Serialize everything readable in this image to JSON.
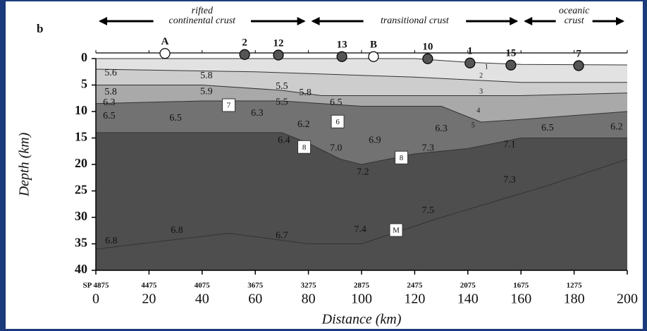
{
  "chart_data": {
    "type": "section",
    "panel_label": "b",
    "xlabel": "Distance (km)",
    "ylabel": "Depth (km)",
    "xlim": [
      0,
      200
    ],
    "ylim": [
      0,
      40
    ],
    "y_inverted": true,
    "xticks": [
      0,
      20,
      40,
      60,
      80,
      100,
      120,
      140,
      160,
      180,
      200
    ],
    "yticks": [
      0,
      5,
      10,
      15,
      20,
      25,
      30,
      35,
      40
    ],
    "x2ticks": [
      {
        "value": 0,
        "label": "SP 4875"
      },
      {
        "value": 20,
        "label": "4475"
      },
      {
        "value": 40,
        "label": "4075"
      },
      {
        "value": 60,
        "label": "3675"
      },
      {
        "value": 80,
        "label": "3275"
      },
      {
        "value": 100,
        "label": "2875"
      },
      {
        "value": 120,
        "label": "2475"
      },
      {
        "value": 140,
        "label": "2075"
      },
      {
        "value": 160,
        "label": "1675"
      },
      {
        "value": 180,
        "label": "1275"
      }
    ],
    "zones": [
      {
        "lines": [
          "rifted",
          "continental crust"
        ],
        "x": [
          0,
          80
        ]
      },
      {
        "lines": [
          "transitional crust"
        ],
        "x": [
          80,
          160
        ]
      },
      {
        "lines": [
          "oceanic",
          "crust"
        ],
        "x": [
          160,
          200
        ]
      }
    ],
    "stations": [
      {
        "name": "A",
        "x": 26,
        "y": -1.1,
        "open": true
      },
      {
        "name": "2",
        "x": 56,
        "y": -0.9,
        "open": false
      },
      {
        "name": "12",
        "x": 68.7,
        "y": -0.8,
        "open": false
      },
      {
        "name": "13",
        "x": 92.6,
        "y": -0.5,
        "open": false
      },
      {
        "name": "B",
        "x": 104.5,
        "y": -0.5,
        "open": true
      },
      {
        "name": "10",
        "x": 124.9,
        "y": -0.1,
        "open": false
      },
      {
        "name": "1",
        "x": 140.8,
        "y": 0.7,
        "open": false
      },
      {
        "name": "15",
        "x": 156.2,
        "y": 1.1,
        "open": false
      },
      {
        "name": "7",
        "x": 181.7,
        "y": 1.2,
        "open": false
      }
    ],
    "boundaries": [
      {
        "x": [
          0,
          120,
          140,
          160,
          200
        ],
        "y": [
          0,
          0,
          0.7,
          1.1,
          1.2
        ]
      },
      {
        "x": [
          0,
          60,
          90,
          120,
          140,
          160,
          200
        ],
        "y": [
          2,
          2.5,
          3,
          3.5,
          4,
          4.5,
          4.5
        ]
      },
      {
        "x": [
          0,
          40,
          70,
          85,
          110,
          140,
          160,
          200
        ],
        "y": [
          5,
          5,
          6,
          7,
          7,
          7,
          7,
          6.5
        ]
      },
      {
        "x": [
          0,
          40,
          70,
          85,
          100,
          130,
          145,
          160,
          200
        ],
        "y": [
          8.5,
          8,
          8,
          8.5,
          9,
          9,
          12,
          11.5,
          10
        ]
      },
      {
        "x": [
          0,
          40,
          70,
          80,
          92,
          100,
          120,
          140,
          160,
          200
        ],
        "y": [
          14,
          14,
          14,
          16,
          19,
          20,
          18,
          17,
          15,
          15
        ]
      },
      {
        "x": [
          0,
          50,
          80,
          100,
          130,
          150,
          170,
          200
        ],
        "y": [
          36,
          33,
          35,
          35,
          30,
          27,
          24,
          19
        ]
      }
    ],
    "layer_colors": [
      "#f4f4f4",
      "#e2e2e2",
      "#cdcdcd",
      "#a9a9a9",
      "#727272",
      "#4e4e4e"
    ],
    "velocities": [
      {
        "value": 5.6,
        "x": 5.6,
        "y": 2.8
      },
      {
        "value": 5.8,
        "x": 5.6,
        "y": 6.4
      },
      {
        "value": 6.3,
        "x": 5,
        "y": 8.4
      },
      {
        "value": 6.5,
        "x": 5,
        "y": 10.9
      },
      {
        "value": 5.8,
        "x": 41.6,
        "y": 3.3
      },
      {
        "value": 5.9,
        "x": 41.6,
        "y": 6.3
      },
      {
        "value": 6.5,
        "x": 30,
        "y": 11.3
      },
      {
        "value": 5.5,
        "x": 70,
        "y": 5.3
      },
      {
        "value": 5.5,
        "x": 70,
        "y": 8.3
      },
      {
        "value": 5.8,
        "x": 78.8,
        "y": 6.5
      },
      {
        "value": 6.3,
        "x": 60.7,
        "y": 10.4
      },
      {
        "value": 6.2,
        "x": 78.2,
        "y": 12.5
      },
      {
        "value": 6.4,
        "x": 70.8,
        "y": 15.5
      },
      {
        "value": 6.5,
        "x": 90.4,
        "y": 8.4
      },
      {
        "value": 7.0,
        "label": "7.0",
        "x": 90.4,
        "y": 17
      },
      {
        "value": 6.9,
        "x": 105,
        "y": 15.5
      },
      {
        "value": 6.3,
        "x": 130,
        "y": 13.3
      },
      {
        "value": 7.3,
        "x": 125,
        "y": 17
      },
      {
        "value": 7.2,
        "x": 100.5,
        "y": 21.5
      },
      {
        "value": 7.1,
        "x": 155.7,
        "y": 16.3
      },
      {
        "value": 6.5,
        "x": 170,
        "y": 13.2
      },
      {
        "value": 6.2,
        "x": 196,
        "y": 13
      },
      {
        "value": 7.3,
        "x": 155.7,
        "y": 23
      },
      {
        "value": 7.5,
        "x": 125,
        "y": 28.8
      },
      {
        "value": 7.4,
        "x": 99.5,
        "y": 32.4
      },
      {
        "value": 6.8,
        "x": 5.8,
        "y": 34.5
      },
      {
        "value": 6.8,
        "x": 30.5,
        "y": 32.5
      },
      {
        "value": 6.7,
        "x": 70,
        "y": 33.5
      }
    ],
    "boxes": [
      {
        "text": "7",
        "x": 50,
        "y": 8.8
      },
      {
        "text": "6",
        "x": 91,
        "y": 11.9
      },
      {
        "text": "8",
        "x": 78.4,
        "y": 16.7
      },
      {
        "text": "8",
        "x": 115,
        "y": 18.7
      },
      {
        "text": "M",
        "x": 113,
        "y": 32.4
      }
    ],
    "layer_numbers": [
      {
        "text": "1",
        "x": 147,
        "y": 1.6
      },
      {
        "text": "2",
        "x": 145,
        "y": 3.3
      },
      {
        "text": "3",
        "x": 145,
        "y": 6.3
      },
      {
        "text": "4",
        "x": 144,
        "y": 9.9
      },
      {
        "text": "5",
        "x": 142,
        "y": 12.7
      }
    ]
  }
}
